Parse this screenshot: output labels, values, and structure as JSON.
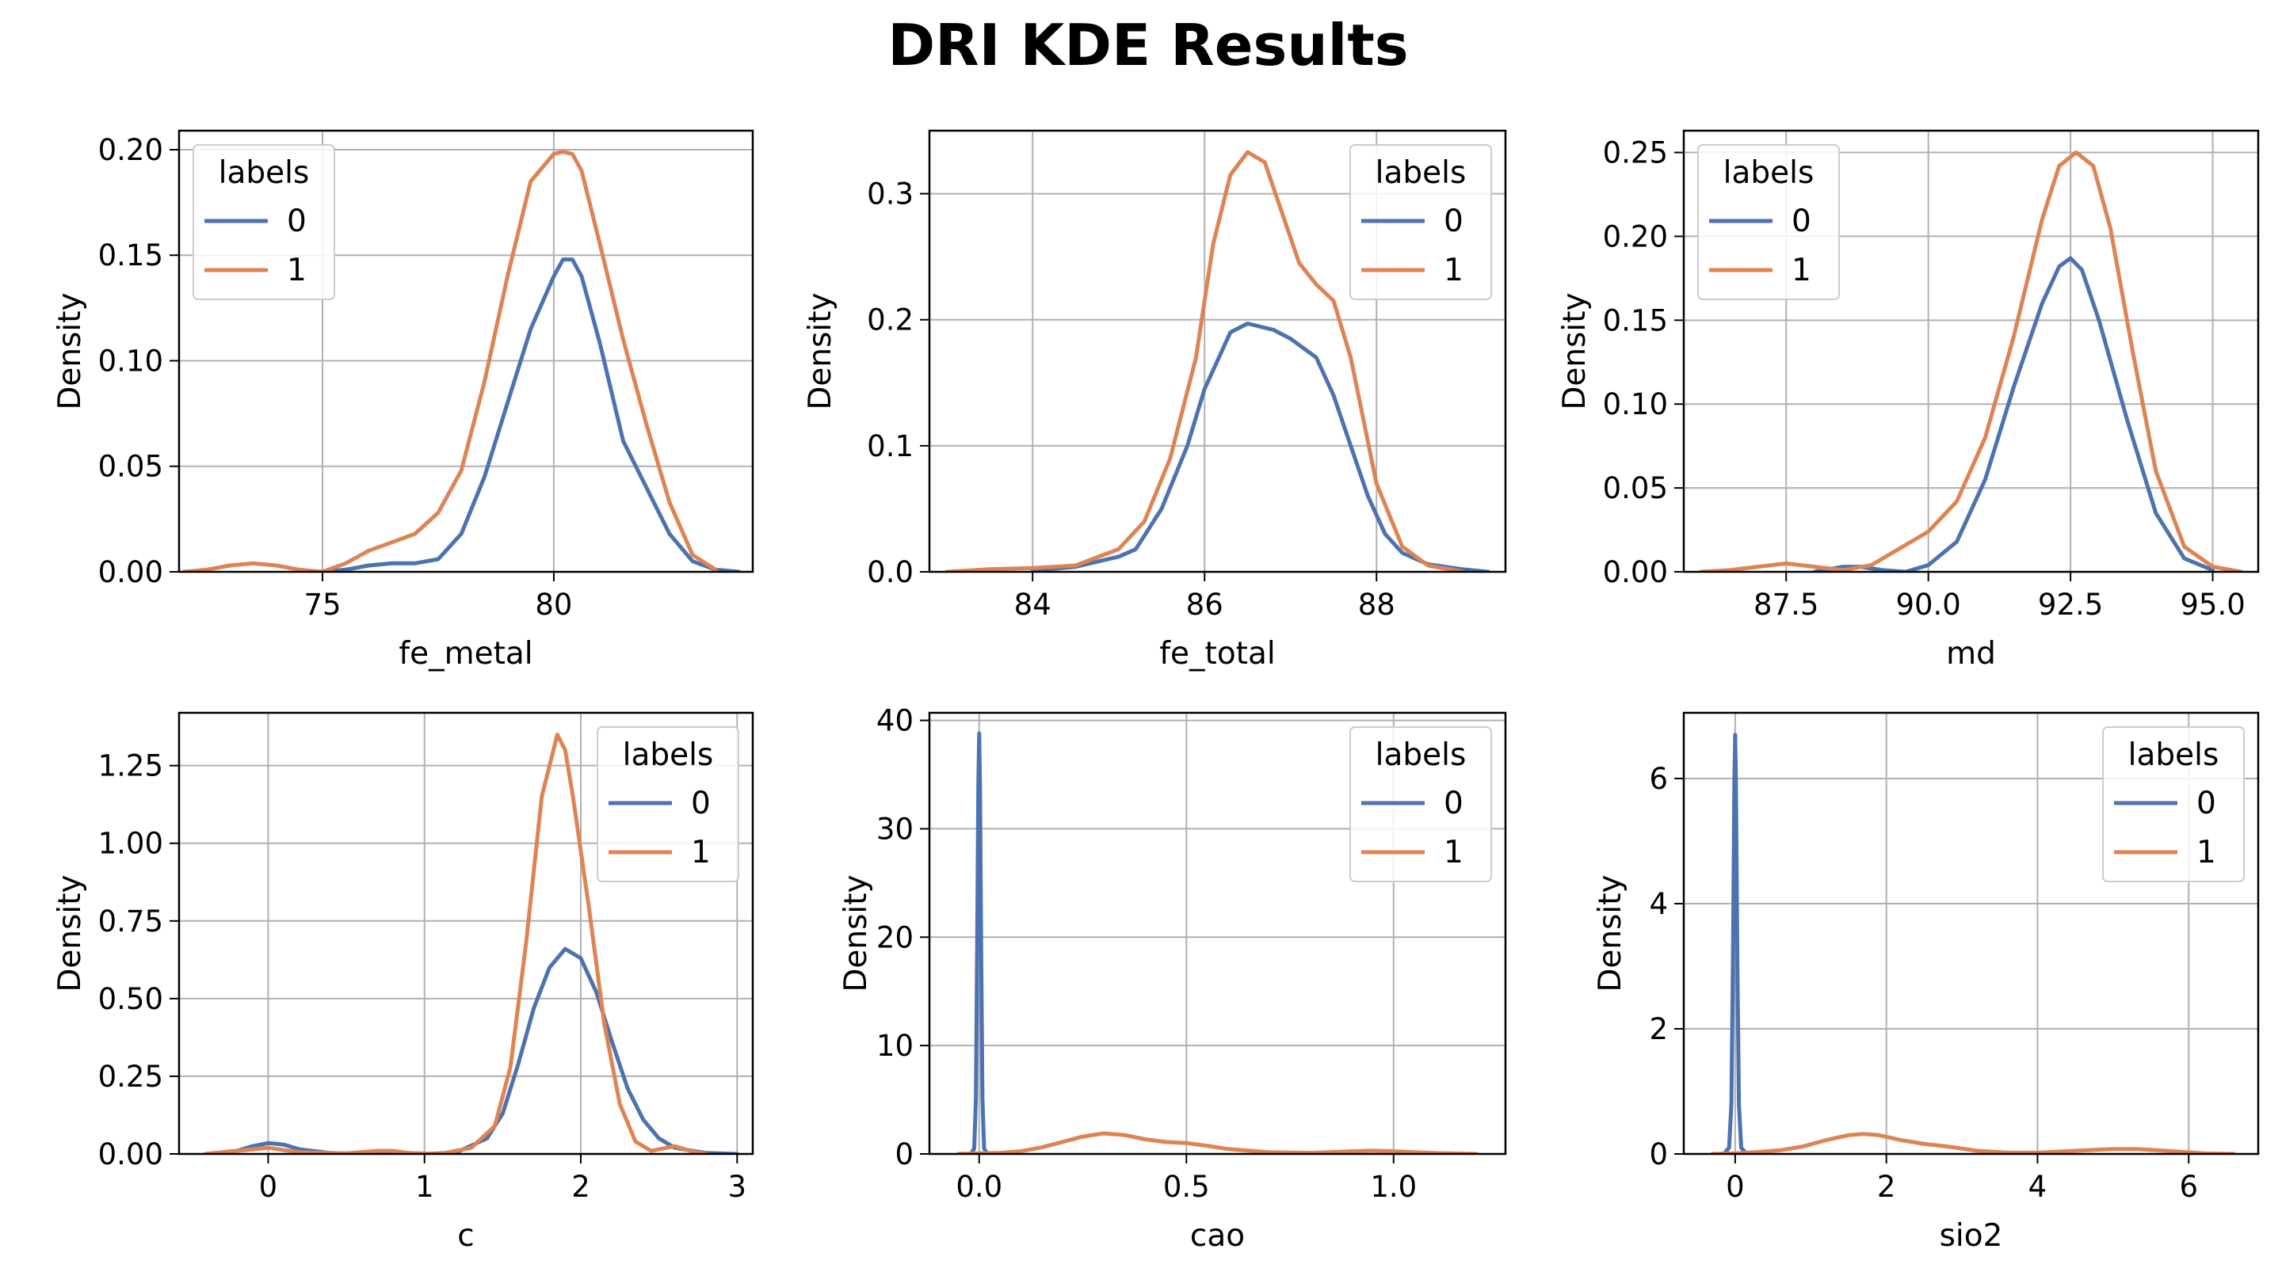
{
  "title": "DRI KDE Results",
  "colors": {
    "series_0": "#4c72b0",
    "series_1": "#dd8452",
    "grid": "#b0b0b0",
    "axis": "#000000"
  },
  "chart_data": [
    {
      "type": "line",
      "xlabel": "fe_metal",
      "ylabel": "Density",
      "xlim": [
        71.9,
        84.3
      ],
      "ylim": [
        0,
        0.209
      ],
      "xticks": [
        75,
        80
      ],
      "xtick_labels": [
        "75",
        "80"
      ],
      "yticks": [
        0,
        0.05,
        0.1,
        0.15,
        0.2
      ],
      "ytick_labels": [
        "0.00",
        "0.05",
        "0.10",
        "0.15",
        "0.20"
      ],
      "grid": true,
      "legend": {
        "title": "labels",
        "placement": "upper-left",
        "entries": [
          "0",
          "1"
        ]
      },
      "series": [
        {
          "name": "0",
          "color": "#4c72b0",
          "x": [
            75.0,
            75.5,
            76.0,
            76.5,
            77.0,
            77.5,
            78.0,
            78.5,
            79.0,
            79.5,
            80.0,
            80.2,
            80.4,
            80.6,
            81.0,
            81.5,
            82.0,
            82.5,
            83.0,
            83.5,
            84.0
          ],
          "y": [
            0.0,
            0.001,
            0.003,
            0.004,
            0.004,
            0.006,
            0.018,
            0.045,
            0.08,
            0.115,
            0.14,
            0.148,
            0.148,
            0.14,
            0.108,
            0.062,
            0.04,
            0.018,
            0.005,
            0.001,
            0.0
          ]
        },
        {
          "name": "1",
          "color": "#dd8452",
          "x": [
            72.0,
            72.5,
            73.0,
            73.5,
            74.0,
            74.5,
            75.0,
            75.5,
            76.0,
            76.5,
            77.0,
            77.5,
            78.0,
            78.5,
            79.0,
            79.5,
            80.0,
            80.2,
            80.4,
            80.6,
            81.0,
            81.5,
            82.0,
            82.5,
            83.0,
            83.5
          ],
          "y": [
            0.0,
            0.001,
            0.003,
            0.004,
            0.003,
            0.001,
            0.0,
            0.004,
            0.01,
            0.014,
            0.018,
            0.028,
            0.048,
            0.09,
            0.14,
            0.185,
            0.198,
            0.199,
            0.198,
            0.19,
            0.155,
            0.11,
            0.07,
            0.033,
            0.008,
            0.001
          ]
        }
      ]
    },
    {
      "type": "line",
      "xlabel": "fe_total",
      "ylabel": "Density",
      "xlim": [
        82.8,
        89.5
      ],
      "ylim": [
        0,
        0.35
      ],
      "xticks": [
        84,
        86,
        88
      ],
      "xtick_labels": [
        "84",
        "86",
        "88"
      ],
      "yticks": [
        0,
        0.1,
        0.2,
        0.3
      ],
      "ytick_labels": [
        "0.0",
        "0.1",
        "0.2",
        "0.3"
      ],
      "grid": true,
      "legend": {
        "title": "labels",
        "placement": "upper-right",
        "entries": [
          "0",
          "1"
        ]
      },
      "series": [
        {
          "name": "0",
          "color": "#4c72b0",
          "x": [
            84.0,
            84.5,
            85.0,
            85.2,
            85.5,
            85.8,
            86.0,
            86.3,
            86.5,
            86.8,
            87.0,
            87.3,
            87.5,
            87.7,
            87.9,
            88.1,
            88.3,
            88.6,
            89.0,
            89.3
          ],
          "y": [
            0.001,
            0.004,
            0.012,
            0.018,
            0.05,
            0.1,
            0.145,
            0.19,
            0.197,
            0.192,
            0.185,
            0.17,
            0.14,
            0.1,
            0.06,
            0.03,
            0.015,
            0.006,
            0.002,
            0.0
          ]
        },
        {
          "name": "1",
          "color": "#dd8452",
          "x": [
            83.0,
            83.5,
            84.0,
            84.5,
            85.0,
            85.3,
            85.6,
            85.9,
            86.1,
            86.3,
            86.5,
            86.7,
            86.9,
            87.1,
            87.3,
            87.5,
            87.7,
            88.0,
            88.3,
            88.6,
            89.0
          ],
          "y": [
            0.0,
            0.002,
            0.003,
            0.005,
            0.018,
            0.04,
            0.09,
            0.17,
            0.26,
            0.315,
            0.333,
            0.325,
            0.285,
            0.245,
            0.228,
            0.215,
            0.17,
            0.07,
            0.02,
            0.005,
            0.0
          ]
        }
      ]
    },
    {
      "type": "line",
      "xlabel": "md",
      "ylabel": "Density",
      "xlim": [
        85.7,
        95.8
      ],
      "ylim": [
        0,
        0.263
      ],
      "xticks": [
        87.5,
        90.0,
        92.5,
        95.0
      ],
      "xtick_labels": [
        "87.5",
        "90.0",
        "92.5",
        "95.0"
      ],
      "yticks": [
        0,
        0.05,
        0.1,
        0.15,
        0.2,
        0.25
      ],
      "ytick_labels": [
        "0.00",
        "0.05",
        "0.10",
        "0.15",
        "0.20",
        "0.25"
      ],
      "grid": true,
      "legend": {
        "title": "labels",
        "placement": "upper-left",
        "entries": [
          "0",
          "1"
        ]
      },
      "series": [
        {
          "name": "0",
          "color": "#4c72b0",
          "x": [
            88.0,
            88.5,
            88.8,
            89.2,
            89.6,
            90.0,
            90.5,
            91.0,
            91.5,
            92.0,
            92.3,
            92.5,
            92.7,
            93.0,
            93.5,
            94.0,
            94.5,
            95.0
          ],
          "y": [
            0.0,
            0.003,
            0.003,
            0.001,
            0.0,
            0.004,
            0.018,
            0.055,
            0.11,
            0.16,
            0.182,
            0.187,
            0.18,
            0.15,
            0.09,
            0.035,
            0.008,
            0.001
          ]
        },
        {
          "name": "1",
          "color": "#dd8452",
          "x": [
            86.0,
            86.5,
            87.0,
            87.5,
            88.0,
            88.5,
            89.0,
            89.5,
            90.0,
            90.5,
            91.0,
            91.5,
            92.0,
            92.3,
            92.6,
            92.9,
            93.2,
            93.6,
            94.0,
            94.5,
            95.0,
            95.5
          ],
          "y": [
            0.0,
            0.001,
            0.003,
            0.005,
            0.003,
            0.001,
            0.004,
            0.014,
            0.024,
            0.042,
            0.08,
            0.14,
            0.21,
            0.242,
            0.25,
            0.242,
            0.205,
            0.13,
            0.06,
            0.015,
            0.003,
            0.0
          ]
        }
      ]
    },
    {
      "type": "line",
      "xlabel": "c",
      "ylabel": "Density",
      "xlim": [
        -0.57,
        3.1
      ],
      "ylim": [
        0,
        1.42
      ],
      "xticks": [
        0,
        1,
        2,
        3
      ],
      "xtick_labels": [
        "0",
        "1",
        "2",
        "3"
      ],
      "yticks": [
        0,
        0.25,
        0.5,
        0.75,
        1.0,
        1.25
      ],
      "ytick_labels": [
        "0.00",
        "0.25",
        "0.50",
        "0.75",
        "1.00",
        "1.25"
      ],
      "grid": true,
      "legend": {
        "title": "labels",
        "placement": "upper-right",
        "entries": [
          "0",
          "1"
        ]
      },
      "series": [
        {
          "name": "0",
          "color": "#4c72b0",
          "x": [
            -0.4,
            -0.2,
            -0.1,
            0.0,
            0.1,
            0.2,
            0.4,
            0.6,
            0.8,
            1.0,
            1.2,
            1.4,
            1.5,
            1.6,
            1.7,
            1.8,
            1.9,
            2.0,
            2.1,
            2.2,
            2.3,
            2.4,
            2.5,
            2.6,
            2.8,
            3.0
          ],
          "y": [
            0.0,
            0.01,
            0.025,
            0.035,
            0.03,
            0.015,
            0.003,
            0.0,
            0.0,
            0.0,
            0.004,
            0.05,
            0.13,
            0.29,
            0.47,
            0.6,
            0.66,
            0.63,
            0.52,
            0.36,
            0.21,
            0.11,
            0.05,
            0.02,
            0.003,
            0.0
          ]
        },
        {
          "name": "1",
          "color": "#dd8452",
          "x": [
            -0.4,
            -0.2,
            0.0,
            0.2,
            0.5,
            0.7,
            0.8,
            0.9,
            1.1,
            1.3,
            1.45,
            1.55,
            1.65,
            1.75,
            1.85,
            1.9,
            1.95,
            2.05,
            2.15,
            2.25,
            2.35,
            2.45,
            2.6,
            2.7,
            2.8
          ],
          "y": [
            0.0,
            0.01,
            0.02,
            0.005,
            0.002,
            0.01,
            0.01,
            0.003,
            0.0,
            0.02,
            0.09,
            0.28,
            0.68,
            1.15,
            1.35,
            1.3,
            1.15,
            0.8,
            0.42,
            0.16,
            0.04,
            0.01,
            0.025,
            0.01,
            0.0
          ]
        }
      ]
    },
    {
      "type": "line",
      "xlabel": "cao",
      "ylabel": "Density",
      "xlim": [
        -0.12,
        1.27
      ],
      "ylim": [
        0,
        40.7
      ],
      "xticks": [
        0,
        0.5,
        1.0
      ],
      "xtick_labels": [
        "0.0",
        "0.5",
        "1.0"
      ],
      "yticks": [
        0,
        10,
        20,
        30,
        40
      ],
      "ytick_labels": [
        "0",
        "10",
        "20",
        "30",
        "40"
      ],
      "grid": true,
      "legend": {
        "title": "labels",
        "placement": "upper-right",
        "entries": [
          "0",
          "1"
        ]
      },
      "series": [
        {
          "name": "0",
          "color": "#4c72b0",
          "x": [
            -0.02,
            -0.012,
            -0.008,
            -0.005,
            -0.002,
            0.0,
            0.002,
            0.005,
            0.008,
            0.012,
            0.02
          ],
          "y": [
            0.0,
            0.5,
            5.0,
            18.0,
            34.0,
            38.8,
            34.0,
            18.0,
            5.0,
            0.5,
            0.0
          ]
        },
        {
          "name": "1",
          "color": "#dd8452",
          "x": [
            -0.05,
            0.0,
            0.05,
            0.1,
            0.15,
            0.2,
            0.25,
            0.3,
            0.35,
            0.4,
            0.45,
            0.5,
            0.55,
            0.6,
            0.7,
            0.8,
            0.9,
            0.95,
            1.0,
            1.1,
            1.2
          ],
          "y": [
            0.0,
            0.05,
            0.1,
            0.25,
            0.6,
            1.1,
            1.6,
            1.9,
            1.75,
            1.35,
            1.1,
            1.0,
            0.75,
            0.45,
            0.15,
            0.1,
            0.25,
            0.3,
            0.25,
            0.08,
            0.0
          ]
        }
      ]
    },
    {
      "type": "line",
      "xlabel": "sio2",
      "ylabel": "Density",
      "xlim": [
        -0.68,
        6.92
      ],
      "ylim": [
        0,
        7.05
      ],
      "xticks": [
        0,
        2,
        4,
        6
      ],
      "xtick_labels": [
        "0",
        "2",
        "4",
        "6"
      ],
      "yticks": [
        0,
        2,
        4,
        6
      ],
      "ytick_labels": [
        "0",
        "2",
        "4",
        "6"
      ],
      "grid": true,
      "legend": {
        "title": "labels",
        "placement": "upper-right",
        "entries": [
          "0",
          "1"
        ]
      },
      "series": [
        {
          "name": "0",
          "color": "#4c72b0",
          "x": [
            -0.15,
            -0.08,
            -0.05,
            -0.03,
            -0.01,
            0.0,
            0.01,
            0.03,
            0.05,
            0.08,
            0.15
          ],
          "y": [
            0.0,
            0.1,
            0.8,
            3.0,
            6.0,
            6.7,
            6.0,
            3.0,
            0.8,
            0.1,
            0.0
          ]
        },
        {
          "name": "1",
          "color": "#dd8452",
          "x": [
            -0.3,
            0.0,
            0.3,
            0.6,
            0.9,
            1.2,
            1.5,
            1.7,
            1.9,
            2.2,
            2.5,
            2.8,
            3.2,
            3.6,
            4.0,
            4.5,
            5.0,
            5.3,
            5.7,
            6.2,
            6.6
          ],
          "y": [
            0.0,
            0.01,
            0.03,
            0.06,
            0.12,
            0.22,
            0.3,
            0.32,
            0.3,
            0.22,
            0.16,
            0.12,
            0.05,
            0.02,
            0.02,
            0.05,
            0.08,
            0.08,
            0.05,
            0.01,
            0.0
          ]
        }
      ]
    }
  ]
}
